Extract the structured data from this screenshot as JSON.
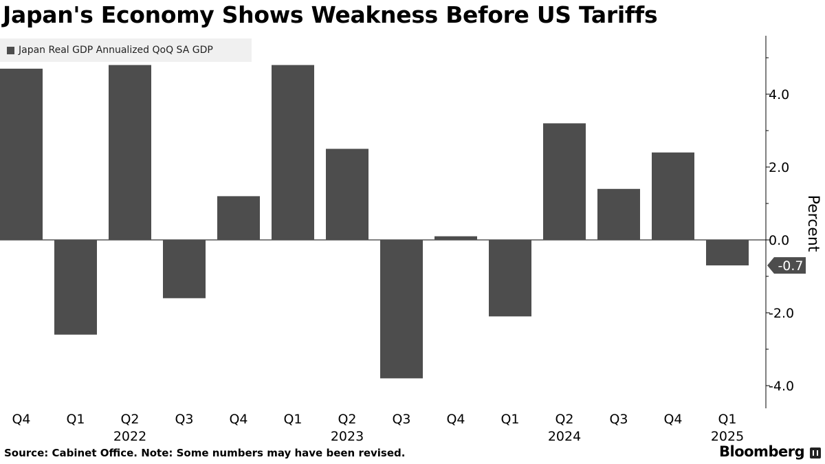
{
  "chart_data": {
    "type": "bar",
    "title": "Japan's Economy Shows Weakness Before US Tariffs",
    "legend": "Japan Real GDP Annualized QoQ SA GDP",
    "legend_position": "top-left",
    "categories": [
      "Q4",
      "Q1",
      "Q2",
      "Q3",
      "Q4",
      "Q1",
      "Q2",
      "Q3",
      "Q4",
      "Q1",
      "Q2",
      "Q3",
      "Q4",
      "Q1"
    ],
    "year_labels": [
      {
        "label": "2022",
        "category_index": 2
      },
      {
        "label": "2023",
        "category_index": 6
      },
      {
        "label": "2024",
        "category_index": 10
      },
      {
        "label": "2025",
        "category_index": 13
      }
    ],
    "series": [
      {
        "name": "Japan Real GDP Annualized QoQ SA GDP",
        "values": [
          4.7,
          -2.6,
          4.8,
          -1.6,
          1.2,
          4.8,
          2.5,
          -3.8,
          0.1,
          -2.1,
          3.2,
          1.4,
          2.4,
          -0.7
        ]
      }
    ],
    "ylabel": "Percent",
    "ylim": [
      -4.6,
      5.6
    ],
    "yticks": [
      {
        "value": 4,
        "label": "4.0"
      },
      {
        "value": 2,
        "label": "2.0"
      },
      {
        "value": 0,
        "label": "0.0"
      },
      {
        "value": -2,
        "label": "-2.0"
      },
      {
        "value": -4,
        "label": "-4.0"
      }
    ],
    "last_value_label": "-0.7",
    "bar_color": "#4d4d4d",
    "grid": false
  },
  "footer": {
    "source": "Source: Cabinet Office. Note: Some numbers may have been revised.",
    "brand": "Bloomberg"
  }
}
